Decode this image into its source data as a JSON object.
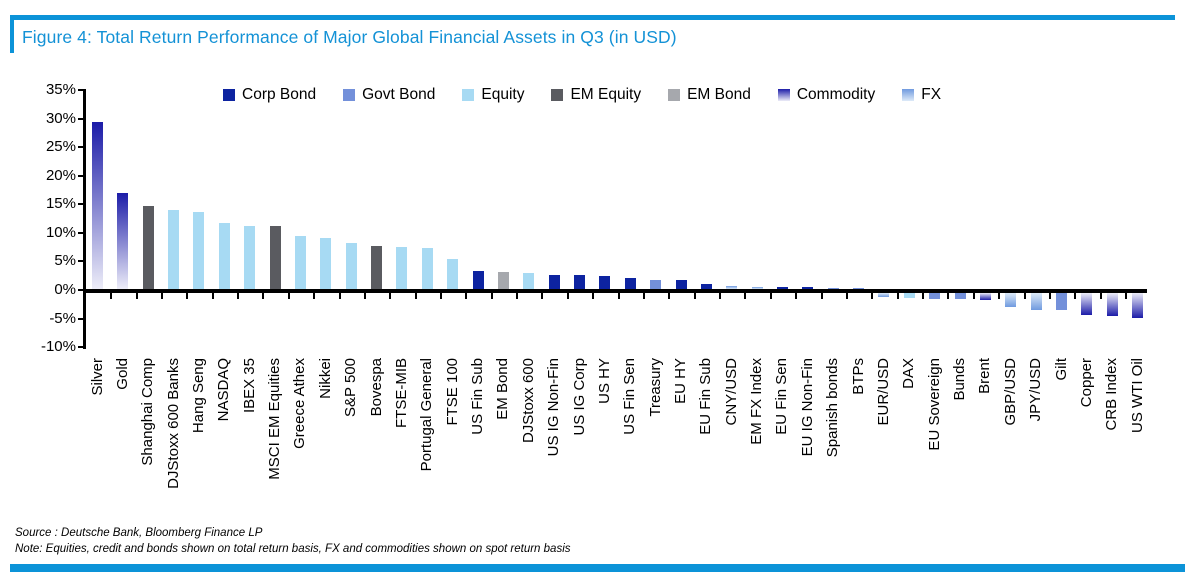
{
  "figure": {
    "title": "Figure 4: Total Return Performance of Major Global Financial Assets in Q3 (in USD)",
    "title_color": "#1492D6",
    "accent_color": "#0C93D8"
  },
  "footer": {
    "source_line": "Source : Deutsche Bank, Bloomberg Finance LP",
    "note_line": "Note: Equities, credit and bonds shown on total return basis, FX and commodities shown on spot return basis"
  },
  "chart_data": {
    "type": "bar",
    "title": "Total Return Performance of Major Global Financial Assets in Q3 (in USD)",
    "xlabel": "",
    "ylabel": "",
    "ylim": [
      -10,
      35
    ],
    "ytick_step": 5,
    "ytick_labels": [
      "35%",
      "30%",
      "25%",
      "20%",
      "15%",
      "10%",
      "5%",
      "0%",
      "-5%",
      "-10%"
    ],
    "grid": false,
    "legend_position": "top",
    "legend": [
      {
        "label": "Corp Bond",
        "type": "corp_bond"
      },
      {
        "label": "Govt Bond",
        "type": "govt_bond"
      },
      {
        "label": "Equity",
        "type": "equity"
      },
      {
        "label": "EM Equity",
        "type": "em_equity"
      },
      {
        "label": "EM Bond",
        "type": "em_bond"
      },
      {
        "label": "Commodity",
        "type": "commodity"
      },
      {
        "label": "FX",
        "type": "fx"
      }
    ],
    "colors": {
      "corp_bond": "#0D23A0",
      "govt_bond": "#7390DA",
      "equity": "#A7DAF3",
      "em_equity": "#5A5B60",
      "em_bond": "#A6A8AD",
      "commodity_dark": "#1C1CA8",
      "commodity_light": "#EDEDF8",
      "fx_dark": "#6F9ADF",
      "fx_light": "#DDEAF8",
      "axis": "#000000"
    },
    "points": [
      {
        "label": "Silver",
        "value": 29.2,
        "type": "commodity"
      },
      {
        "label": "Gold",
        "value": 16.8,
        "type": "commodity"
      },
      {
        "label": "Shanghai Comp",
        "value": 14.5,
        "type": "em_equity"
      },
      {
        "label": "DJStoxx 600 Banks",
        "value": 13.9,
        "type": "equity"
      },
      {
        "label": "Hang Seng",
        "value": 13.5,
        "type": "equity"
      },
      {
        "label": "NASDAQ",
        "value": 11.5,
        "type": "equity"
      },
      {
        "label": "IBEX 35",
        "value": 11.1,
        "type": "equity"
      },
      {
        "label": "MSCI EM Equities",
        "value": 11.0,
        "type": "em_equity"
      },
      {
        "label": "Greece Athex",
        "value": 9.3,
        "type": "equity"
      },
      {
        "label": "Nikkei",
        "value": 8.9,
        "type": "equity"
      },
      {
        "label": "S&P 500",
        "value": 8.1,
        "type": "equity"
      },
      {
        "label": "Bovespa",
        "value": 7.6,
        "type": "em_equity"
      },
      {
        "label": "FTSE-MIB",
        "value": 7.4,
        "type": "equity"
      },
      {
        "label": "Portugal General",
        "value": 7.2,
        "type": "equity"
      },
      {
        "label": "FTSE 100",
        "value": 5.3,
        "type": "equity"
      },
      {
        "label": "US Fin Sub",
        "value": 3.1,
        "type": "corp_bond"
      },
      {
        "label": "EM Bond",
        "value": 2.9,
        "type": "em_bond"
      },
      {
        "label": "DJStoxx 600",
        "value": 2.8,
        "type": "equity"
      },
      {
        "label": "US IG Non-Fin",
        "value": 2.5,
        "type": "corp_bond"
      },
      {
        "label": "US IG Corp",
        "value": 2.4,
        "type": "corp_bond"
      },
      {
        "label": "US HY",
        "value": 2.2,
        "type": "corp_bond"
      },
      {
        "label": "US Fin Sen",
        "value": 1.9,
        "type": "corp_bond"
      },
      {
        "label": "Treasury",
        "value": 1.6,
        "type": "govt_bond"
      },
      {
        "label": "EU HY",
        "value": 1.5,
        "type": "corp_bond"
      },
      {
        "label": "EU Fin Sub",
        "value": 0.9,
        "type": "corp_bond"
      },
      {
        "label": "CNY/USD",
        "value": 0.6,
        "type": "fx"
      },
      {
        "label": "EM FX Index",
        "value": 0.4,
        "type": "fx"
      },
      {
        "label": "EU Fin Sen",
        "value": 0.35,
        "type": "corp_bond"
      },
      {
        "label": "EU IG Non-Fin",
        "value": 0.3,
        "type": "corp_bond"
      },
      {
        "label": "Spanish bonds",
        "value": 0.1,
        "type": "govt_bond"
      },
      {
        "label": "BTPs",
        "value": 0.1,
        "type": "govt_bond"
      },
      {
        "label": "EUR/USD",
        "value": -0.7,
        "type": "fx"
      },
      {
        "label": "DAX",
        "value": -0.9,
        "type": "equity"
      },
      {
        "label": "EU Sovereign",
        "value": -1.0,
        "type": "govt_bond"
      },
      {
        "label": "Bunds",
        "value": -1.1,
        "type": "govt_bond"
      },
      {
        "label": "Brent",
        "value": -1.2,
        "type": "commodity"
      },
      {
        "label": "GBP/USD",
        "value": -2.5,
        "type": "fx"
      },
      {
        "label": "JPY/USD",
        "value": -3.0,
        "type": "fx"
      },
      {
        "label": "Gilt",
        "value": -3.0,
        "type": "govt_bond"
      },
      {
        "label": "Copper",
        "value": -3.8,
        "type": "commodity"
      },
      {
        "label": "CRB Index",
        "value": -4.1,
        "type": "commodity"
      },
      {
        "label": "US WTI Oil",
        "value": -4.3,
        "type": "commodity"
      }
    ]
  }
}
